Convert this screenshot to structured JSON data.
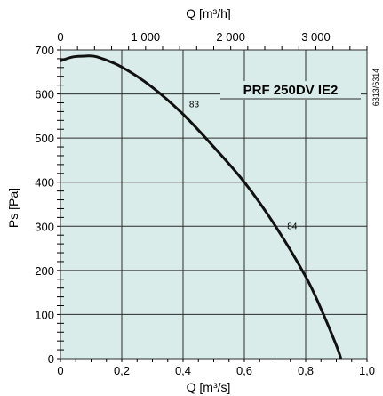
{
  "chart_data": {
    "type": "line",
    "model_label": "PRF 250DV IE2",
    "doc_code": "6313/6314",
    "xlabel": "Q [m³/s]",
    "x2label": "Q [m³/h]",
    "ylabel": "Ps [Pa]",
    "xlim": [
      0,
      1.0
    ],
    "ylim": [
      0,
      700
    ],
    "x2lim": [
      0,
      3600
    ],
    "x_ticks": [
      0,
      0.2,
      0.4,
      0.6,
      0.8,
      1.0
    ],
    "x_tick_labels": [
      "0",
      "0,2",
      "0,4",
      "0,6",
      "0,8",
      "1,0"
    ],
    "x2_ticks": [
      0,
      1000,
      2000,
      3000
    ],
    "x2_tick_labels": [
      "0",
      "1 000",
      "2 000",
      "3 000"
    ],
    "y_ticks": [
      0,
      100,
      200,
      300,
      400,
      500,
      600,
      700
    ],
    "y_tick_labels": [
      "0",
      "100",
      "200",
      "300",
      "400",
      "500",
      "600",
      "700"
    ],
    "grid": true,
    "colors": {
      "plot_bg": "#d9ecea",
      "grid": "#2b2b2b",
      "curve": "#111111"
    },
    "series": [
      {
        "x": [
          0,
          0.04,
          0.08,
          0.12,
          0.2,
          0.3,
          0.4,
          0.5,
          0.6,
          0.7,
          0.8,
          0.85,
          0.9,
          0.915
        ],
        "y": [
          675,
          684,
          686,
          684,
          661,
          615,
          554,
          480,
          400,
          302,
          186,
          113,
          30,
          0
        ]
      }
    ],
    "annotations": [
      {
        "text": "83",
        "x": 0.42,
        "y": 570
      },
      {
        "text": "84",
        "x": 0.74,
        "y": 294
      }
    ]
  }
}
